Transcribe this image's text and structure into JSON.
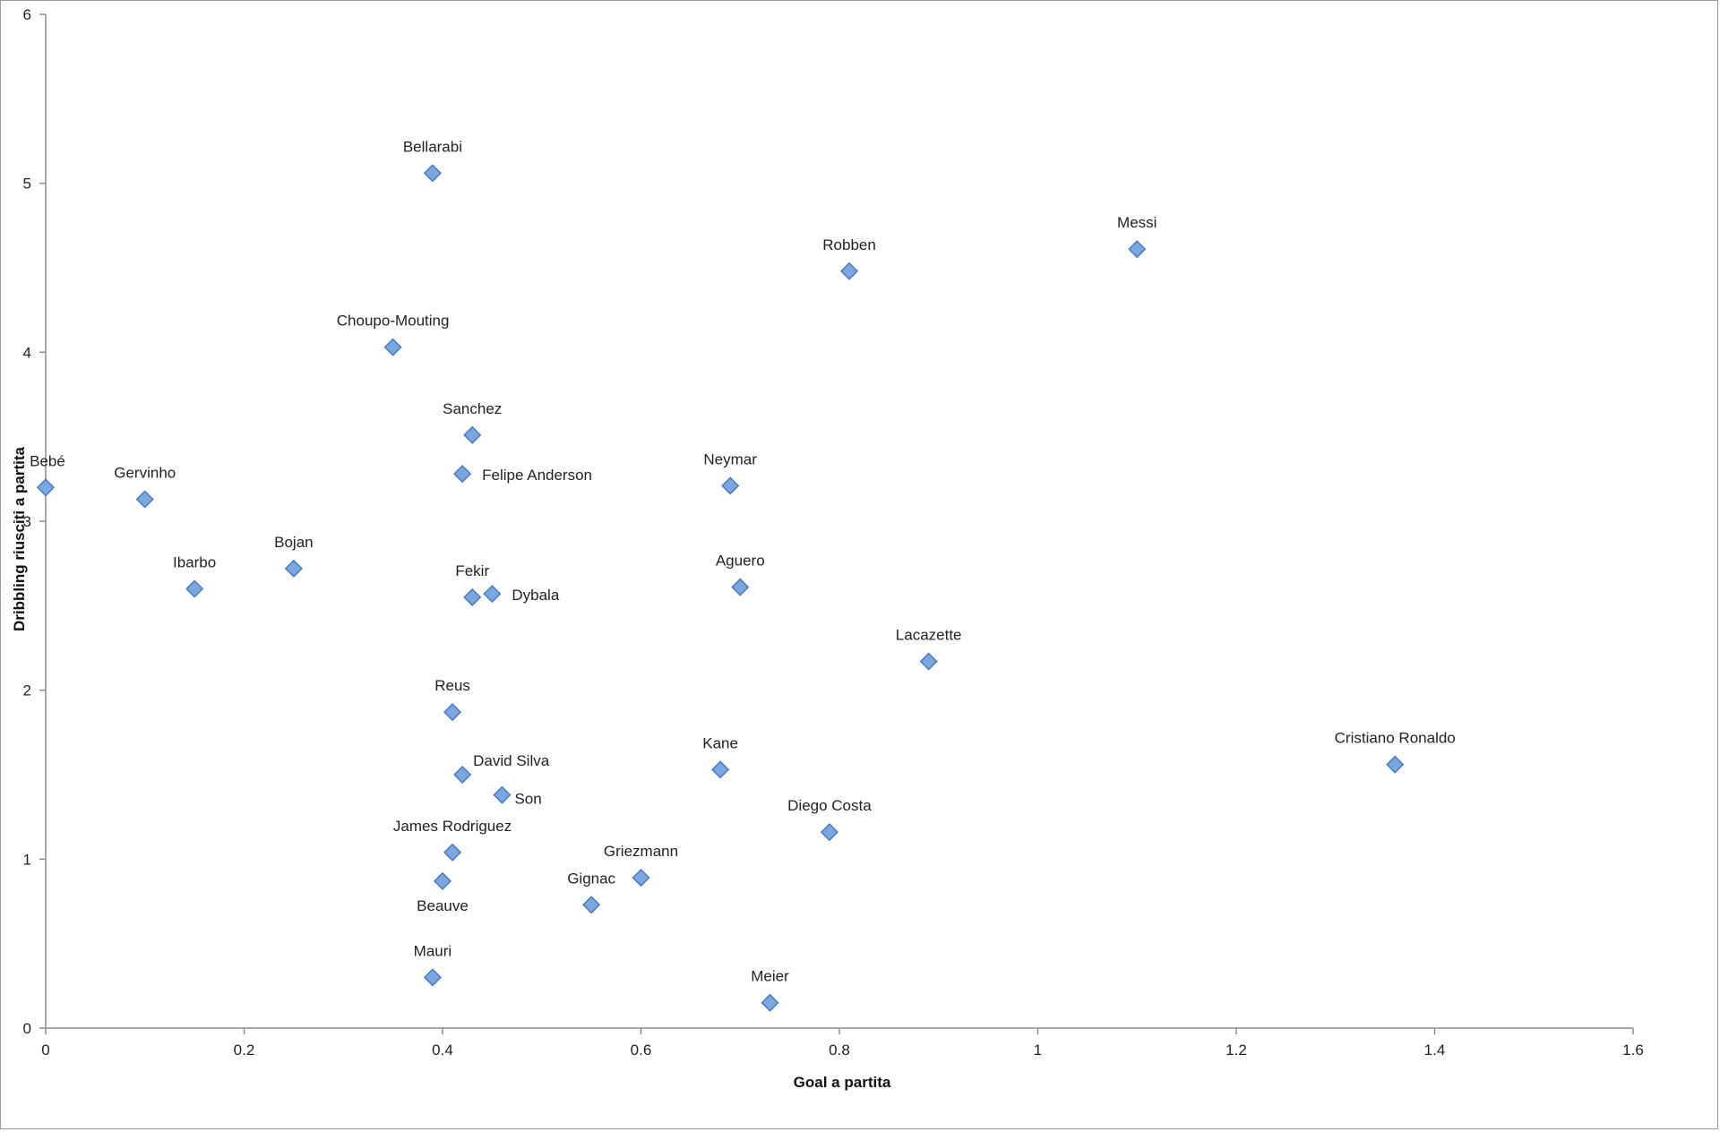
{
  "chart_data": {
    "type": "scatter",
    "title": "",
    "xlabel": "Goal a partita",
    "ylabel": "Dribbling riusciti a partita",
    "xlim": [
      0,
      1.6
    ],
    "ylim": [
      0,
      6
    ],
    "x_ticks": [
      "0",
      "0.2",
      "0.4",
      "0.6",
      "0.8",
      "1",
      "1.2",
      "1.4",
      "1.6"
    ],
    "y_ticks": [
      "0",
      "1",
      "2",
      "3",
      "4",
      "5",
      "6"
    ],
    "grid": false,
    "legend": "none",
    "marker_color": "#7aa7df",
    "marker_edge_color": "#4a7bbf",
    "points": [
      {
        "label": "Bebé",
        "x": 0.0,
        "y": 3.2,
        "label_pos": "above"
      },
      {
        "label": "Gervinho",
        "x": 0.1,
        "y": 3.13,
        "label_pos": "above"
      },
      {
        "label": "Ibarbo",
        "x": 0.15,
        "y": 2.6,
        "label_pos": "above"
      },
      {
        "label": "Bojan",
        "x": 0.25,
        "y": 2.72,
        "label_pos": "above"
      },
      {
        "label": "Choupo-Mouting",
        "x": 0.35,
        "y": 4.03,
        "label_pos": "above"
      },
      {
        "label": "Bellarabi",
        "x": 0.39,
        "y": 5.06,
        "label_pos": "above"
      },
      {
        "label": "Mauri",
        "x": 0.39,
        "y": 0.3,
        "label_pos": "above"
      },
      {
        "label": "Beauve",
        "x": 0.4,
        "y": 0.87,
        "label_pos": "below"
      },
      {
        "label": "Reus",
        "x": 0.41,
        "y": 1.87,
        "label_pos": "above"
      },
      {
        "label": "James Rodriguez",
        "x": 0.41,
        "y": 1.04,
        "label_pos": "above"
      },
      {
        "label": "David Silva",
        "x": 0.42,
        "y": 1.5,
        "label_pos": "above-right"
      },
      {
        "label": "Felipe Anderson",
        "x": 0.42,
        "y": 3.28,
        "label_pos": "right"
      },
      {
        "label": "Sanchez",
        "x": 0.43,
        "y": 3.51,
        "label_pos": "above"
      },
      {
        "label": "Fekir",
        "x": 0.43,
        "y": 2.55,
        "label_pos": "above"
      },
      {
        "label": "Dybala",
        "x": 0.45,
        "y": 2.57,
        "label_pos": "right"
      },
      {
        "label": "Son",
        "x": 0.46,
        "y": 1.38,
        "label_pos": "below-right"
      },
      {
        "label": "Gignac",
        "x": 0.55,
        "y": 0.73,
        "label_pos": "above"
      },
      {
        "label": "Griezmann",
        "x": 0.6,
        "y": 0.89,
        "label_pos": "above"
      },
      {
        "label": "Kane",
        "x": 0.68,
        "y": 1.53,
        "label_pos": "above"
      },
      {
        "label": "Neymar",
        "x": 0.69,
        "y": 3.21,
        "label_pos": "above"
      },
      {
        "label": "Aguero",
        "x": 0.7,
        "y": 2.61,
        "label_pos": "above"
      },
      {
        "label": "Meier",
        "x": 0.73,
        "y": 0.15,
        "label_pos": "above"
      },
      {
        "label": "Diego Costa",
        "x": 0.79,
        "y": 1.16,
        "label_pos": "above"
      },
      {
        "label": "Robben",
        "x": 0.81,
        "y": 4.48,
        "label_pos": "above"
      },
      {
        "label": "Lacazette",
        "x": 0.89,
        "y": 2.17,
        "label_pos": "above"
      },
      {
        "label": "Messi",
        "x": 1.1,
        "y": 4.61,
        "label_pos": "above"
      },
      {
        "label": "Cristiano Ronaldo",
        "x": 1.36,
        "y": 1.56,
        "label_pos": "above"
      }
    ]
  }
}
